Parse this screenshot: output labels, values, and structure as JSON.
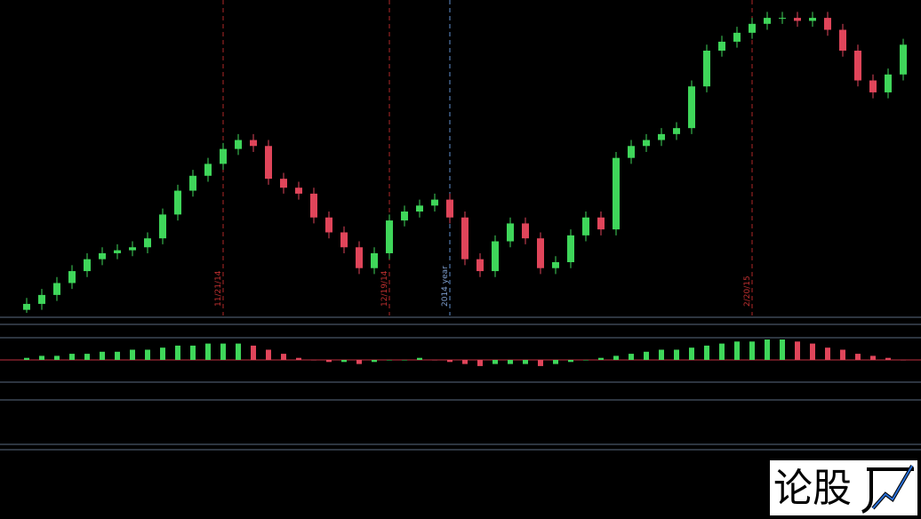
{
  "chart_data": {
    "type": "candlestick",
    "open": [
      1,
      3,
      6,
      10,
      14,
      18,
      20,
      21,
      22,
      25,
      33,
      41,
      46,
      50,
      55,
      58,
      56,
      45,
      42,
      40,
      32,
      27,
      22,
      15,
      20,
      31,
      34,
      36,
      38,
      32,
      18,
      14,
      24,
      30,
      25,
      15,
      17,
      26,
      32,
      28,
      52,
      56,
      58,
      60,
      62,
      76,
      88,
      91,
      94,
      97,
      99,
      99,
      98,
      99,
      95,
      88,
      78,
      74,
      80
    ],
    "close": [
      3,
      6,
      10,
      14,
      18,
      20,
      21,
      22,
      25,
      33,
      41,
      46,
      50,
      55,
      58,
      56,
      45,
      42,
      40,
      32,
      27,
      22,
      15,
      20,
      31,
      34,
      36,
      38,
      32,
      18,
      14,
      24,
      30,
      25,
      15,
      17,
      26,
      32,
      28,
      52,
      56,
      58,
      60,
      62,
      76,
      88,
      91,
      94,
      97,
      99,
      99,
      98,
      99,
      95,
      88,
      78,
      74,
      80,
      90
    ],
    "high": [
      5,
      8,
      12,
      16,
      20,
      22,
      23,
      24,
      27,
      35,
      43,
      48,
      52,
      57,
      60,
      60,
      58,
      47,
      44,
      42,
      34,
      29,
      24,
      22,
      33,
      36,
      38,
      40,
      40,
      34,
      20,
      26,
      32,
      32,
      27,
      19,
      28,
      34,
      34,
      54,
      58,
      60,
      62,
      64,
      78,
      90,
      93,
      96,
      99,
      101,
      101,
      101,
      101,
      101,
      97,
      90,
      80,
      82,
      92
    ],
    "low": [
      0,
      1,
      4,
      8,
      12,
      16,
      18,
      19,
      20,
      23,
      31,
      39,
      44,
      48,
      53,
      54,
      43,
      40,
      38,
      30,
      25,
      20,
      13,
      13,
      18,
      29,
      32,
      34,
      30,
      16,
      12,
      12,
      22,
      23,
      13,
      13,
      15,
      24,
      26,
      26,
      50,
      54,
      56,
      58,
      60,
      74,
      86,
      89,
      92,
      95,
      97,
      96,
      96,
      93,
      86,
      76,
      72,
      72,
      78
    ],
    "up_color": "#3fd65a",
    "down_color": "#e0455a",
    "ylim": [
      0,
      105
    ],
    "date_labels": [
      "11/21/14",
      "12/19/14",
      "2014 year",
      "2/20/15"
    ],
    "macd": [
      1,
      2,
      2,
      3,
      3,
      4,
      4,
      5,
      5,
      6,
      7,
      7,
      8,
      8,
      8,
      7,
      5,
      3,
      1,
      0,
      -1,
      -1,
      -2,
      -1,
      0,
      0,
      1,
      0,
      -1,
      -2,
      -3,
      -2,
      -2,
      -2,
      -3,
      -2,
      -1,
      0,
      1,
      2,
      3,
      4,
      5,
      5,
      6,
      7,
      8,
      9,
      9,
      10,
      10,
      9,
      8,
      6,
      5,
      3,
      2,
      1,
      0
    ],
    "macd_lim": [
      -10,
      10
    ],
    "watermark": "论股"
  }
}
